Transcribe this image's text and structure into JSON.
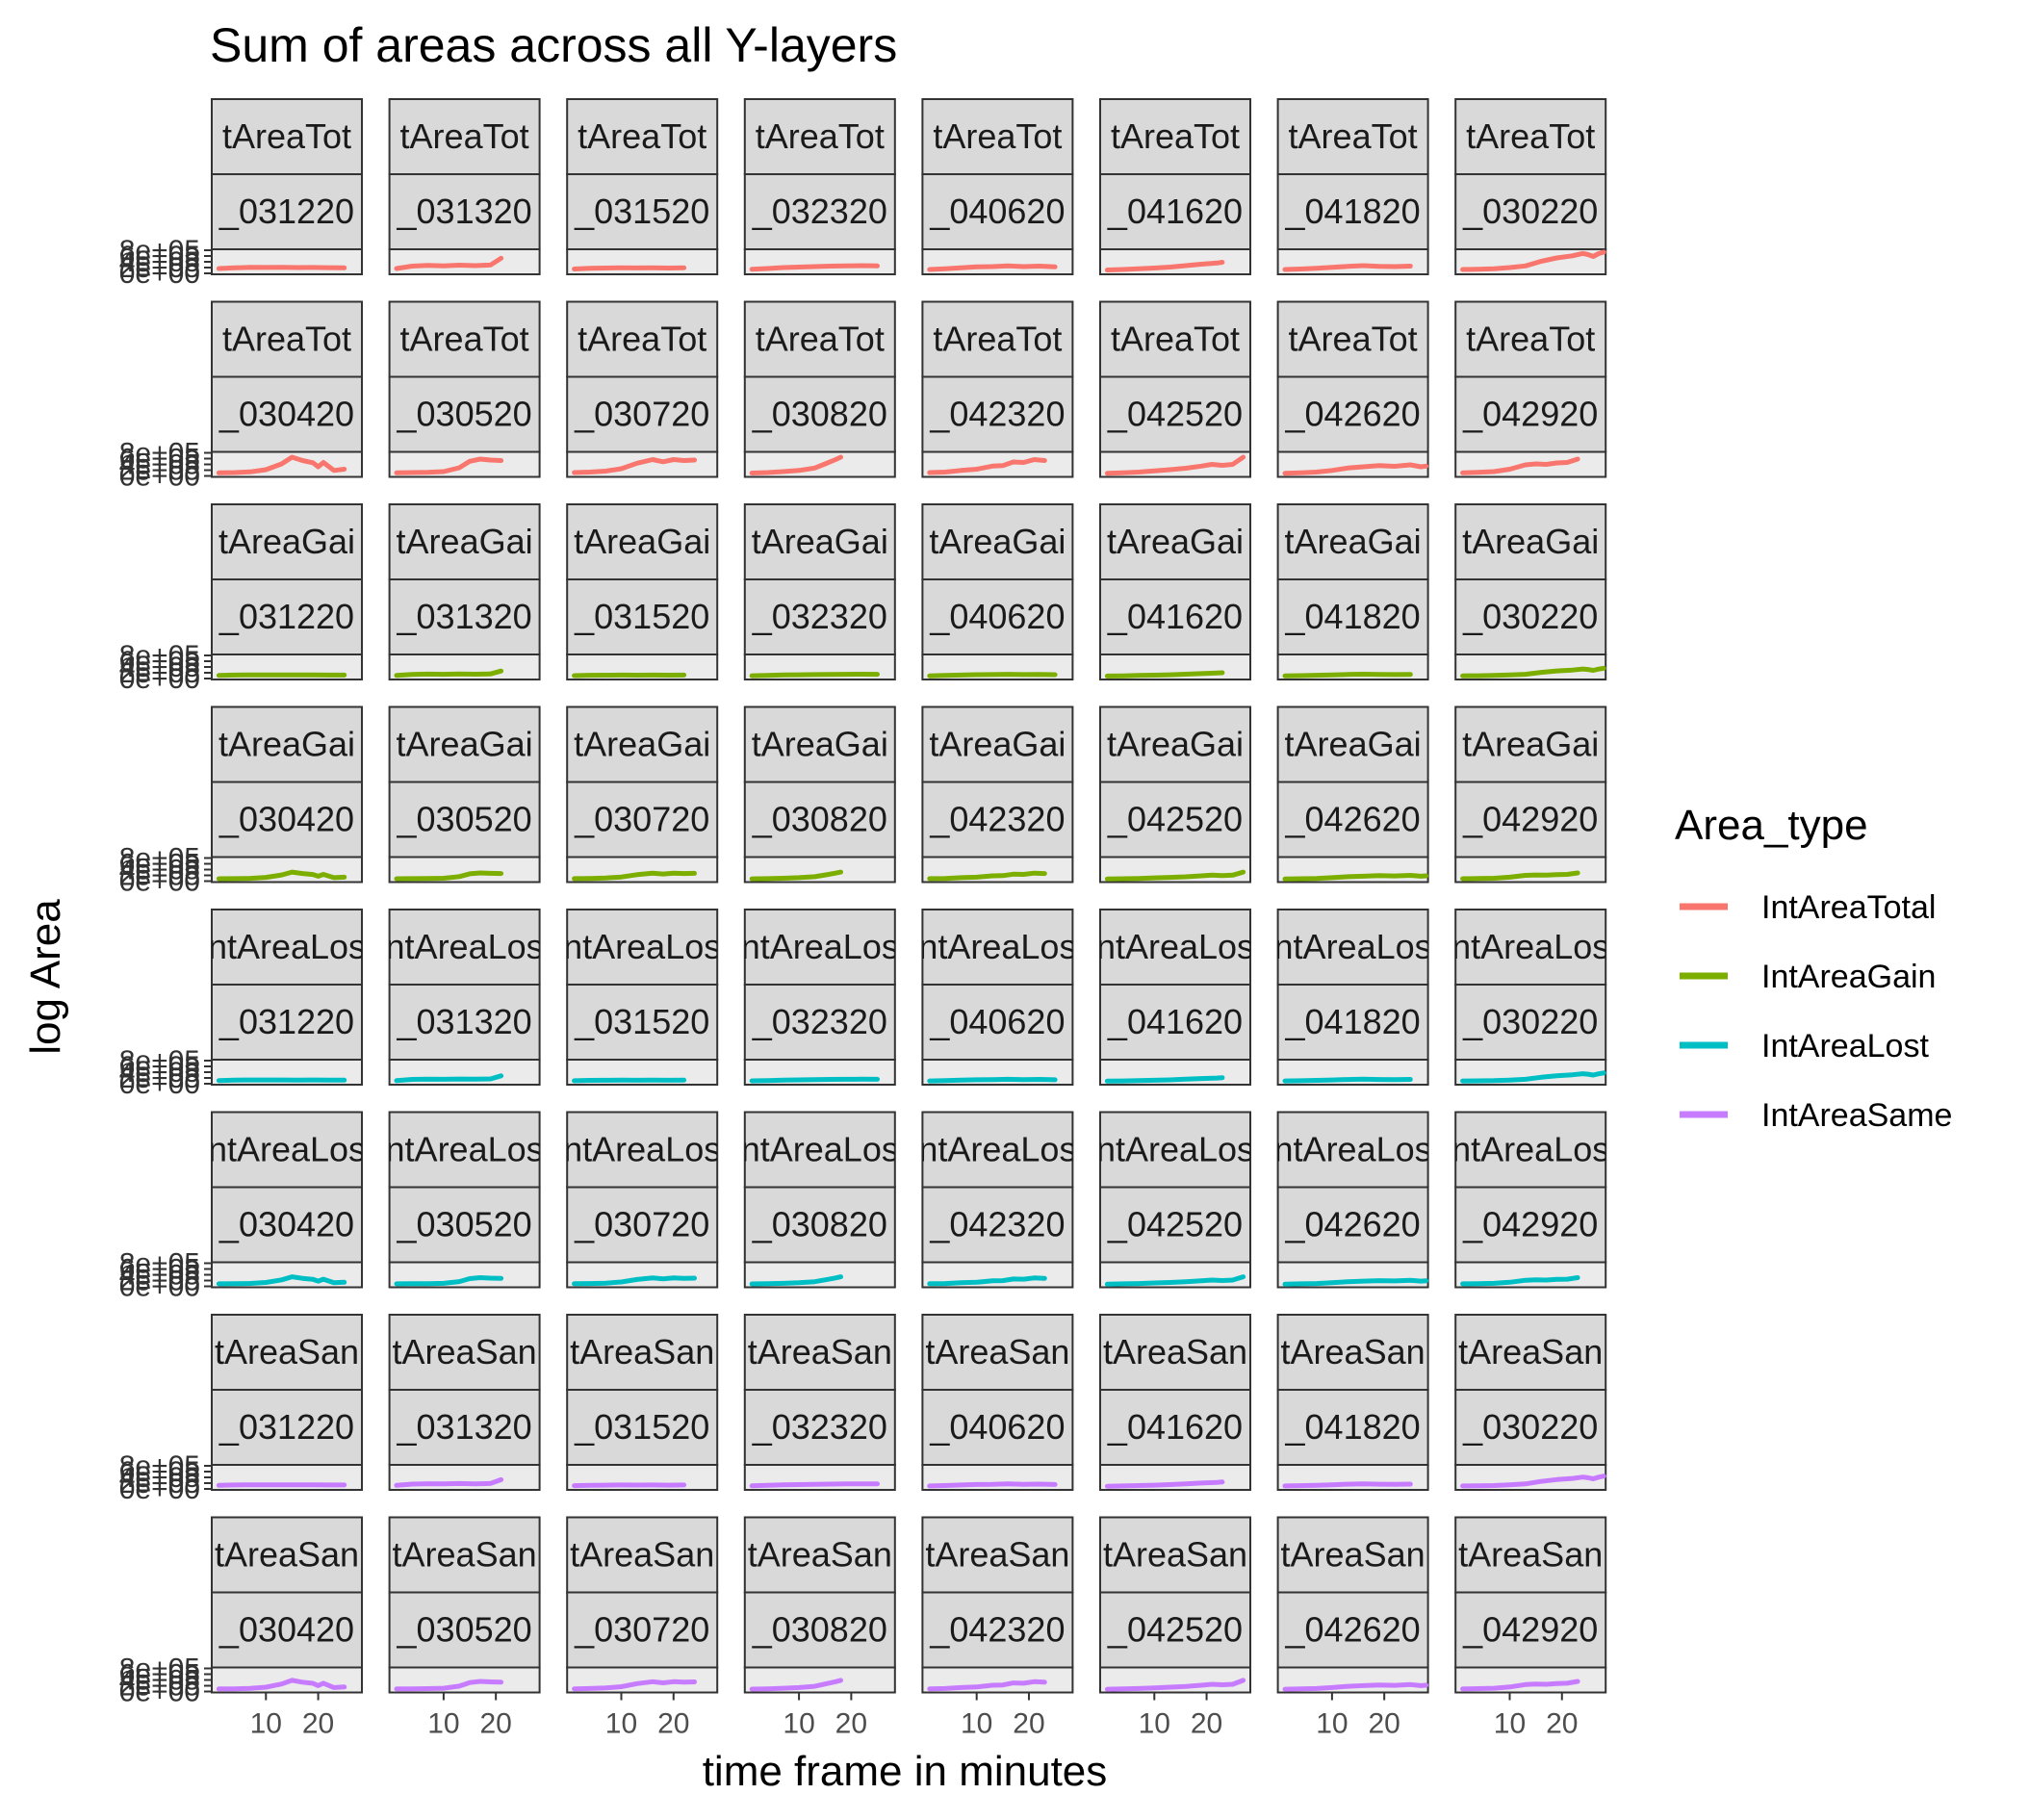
{
  "chart_data": {
    "type": "line",
    "title": "Sum of areas across all Y-layers",
    "xlabel": "time frame in minutes",
    "ylabel": "log Area",
    "x_ticks": [
      10,
      20
    ],
    "y_tick_labels": [
      "0e+00",
      "2e+05",
      "4e+05",
      "6e+05",
      "8e+05"
    ],
    "ylim": [
      0,
      800000
    ],
    "grid": false,
    "legend": {
      "title": "Area_type",
      "position": "right",
      "entries": [
        {
          "name": "IntAreaTotal",
          "color": "#F8766D"
        },
        {
          "name": "IntAreaGain",
          "color": "#7CAE00"
        },
        {
          "name": "IntAreaLost",
          "color": "#00BFC4"
        },
        {
          "name": "IntAreaSame",
          "color": "#C77CFF"
        }
      ]
    },
    "panel_rows": [
      {
        "area_type": "IntAreaTotal",
        "strip_label": "tAreaTot",
        "samples": [
          "_031220",
          "_031320",
          "_031520",
          "_032320",
          "_040620",
          "_041620",
          "_041820",
          "_030220"
        ]
      },
      {
        "area_type": "IntAreaTotal",
        "strip_label": "tAreaTot",
        "samples": [
          "_030420",
          "_030520",
          "_030720",
          "_030820",
          "_042320",
          "_042520",
          "_042620",
          "_042920"
        ]
      },
      {
        "area_type": "IntAreaGain",
        "strip_label": "tAreaGai",
        "samples": [
          "_031220",
          "_031320",
          "_031520",
          "_032320",
          "_040620",
          "_041620",
          "_041820",
          "_030220"
        ]
      },
      {
        "area_type": "IntAreaGain",
        "strip_label": "tAreaGai",
        "samples": [
          "_030420",
          "_030520",
          "_030720",
          "_030820",
          "_042320",
          "_042520",
          "_042620",
          "_042920"
        ]
      },
      {
        "area_type": "IntAreaLost",
        "strip_label": "ntAreaLos",
        "samples": [
          "_031220",
          "_031320",
          "_031520",
          "_032320",
          "_040620",
          "_041620",
          "_041820",
          "_030220"
        ]
      },
      {
        "area_type": "IntAreaLost",
        "strip_label": "ntAreaLos",
        "samples": [
          "_030420",
          "_030520",
          "_030720",
          "_030820",
          "_042320",
          "_042520",
          "_042620",
          "_042920"
        ]
      },
      {
        "area_type": "IntAreaSame",
        "strip_label": "tAreaSan",
        "samples": [
          "_031220",
          "_031320",
          "_031520",
          "_032320",
          "_040620",
          "_041620",
          "_041820",
          "_030220"
        ]
      },
      {
        "area_type": "IntAreaSame",
        "strip_label": "tAreaSan",
        "samples": [
          "_030420",
          "_030520",
          "_030720",
          "_030820",
          "_042320",
          "_042520",
          "_042620",
          "_042920"
        ]
      }
    ],
    "x_range": [
      0,
      28
    ],
    "sample_profiles": {
      "_031220": {
        "x": [
          1,
          4,
          7,
          10,
          13,
          16,
          19,
          22,
          25
        ],
        "y": [
          120000,
          150000,
          170000,
          165000,
          170000,
          160000,
          165000,
          155000,
          150000
        ]
      },
      "_031320": {
        "x": [
          1,
          4,
          7,
          10,
          13,
          16,
          19,
          21
        ],
        "y": [
          120000,
          220000,
          250000,
          230000,
          260000,
          240000,
          270000,
          550000
        ]
      },
      "_031520": {
        "x": [
          1,
          4,
          7,
          10,
          13,
          16,
          19,
          22
        ],
        "y": [
          100000,
          130000,
          140000,
          150000,
          145000,
          150000,
          140000,
          150000
        ]
      },
      "_032320": {
        "x": [
          1,
          4,
          7,
          10,
          13,
          16,
          19,
          22,
          25
        ],
        "y": [
          90000,
          120000,
          160000,
          180000,
          200000,
          220000,
          230000,
          240000,
          230000
        ]
      },
      "_040620": {
        "x": [
          1,
          4,
          7,
          10,
          13,
          16,
          19,
          22,
          25
        ],
        "y": [
          80000,
          110000,
          150000,
          190000,
          200000,
          230000,
          200000,
          220000,
          190000
        ]
      },
      "_041620": {
        "x": [
          1,
          4,
          7,
          10,
          13,
          16,
          19,
          22,
          23
        ],
        "y": [
          60000,
          80000,
          110000,
          140000,
          180000,
          240000,
          300000,
          350000,
          380000
        ]
      },
      "_041820": {
        "x": [
          1,
          4,
          7,
          10,
          13,
          16,
          19,
          22,
          25
        ],
        "y": [
          80000,
          100000,
          130000,
          170000,
          210000,
          240000,
          210000,
          200000,
          220000
        ]
      },
      "_030220": {
        "x": [
          1,
          4,
          7,
          10,
          13,
          16,
          19,
          22,
          24,
          25,
          26,
          27,
          28
        ],
        "y": [
          80000,
          90000,
          110000,
          160000,
          230000,
          420000,
          560000,
          650000,
          750000,
          700000,
          620000,
          740000,
          820000
        ]
      },
      "_030420": {
        "x": [
          1,
          4,
          7,
          10,
          13,
          15,
          17,
          19,
          20,
          21,
          23,
          25
        ],
        "y": [
          50000,
          60000,
          90000,
          180000,
          420000,
          700000,
          560000,
          470000,
          300000,
          480000,
          150000,
          200000
        ]
      },
      "_030520": {
        "x": [
          1,
          4,
          7,
          10,
          13,
          15,
          17,
          19,
          21
        ],
        "y": [
          50000,
          60000,
          70000,
          100000,
          260000,
          530000,
          620000,
          580000,
          560000
        ]
      },
      "_030720": {
        "x": [
          1,
          4,
          7,
          10,
          13,
          16,
          18,
          20,
          22,
          24
        ],
        "y": [
          60000,
          80000,
          120000,
          220000,
          450000,
          600000,
          510000,
          600000,
          560000,
          580000
        ]
      },
      "_030820": {
        "x": [
          1,
          4,
          7,
          10,
          13,
          15,
          17,
          18
        ],
        "y": [
          40000,
          60000,
          100000,
          150000,
          250000,
          420000,
          600000,
          700000
        ]
      },
      "_042320": {
        "x": [
          1,
          4,
          7,
          10,
          13,
          15,
          17,
          19,
          21,
          23
        ],
        "y": [
          60000,
          80000,
          150000,
          200000,
          330000,
          350000,
          500000,
          480000,
          600000,
          560000
        ]
      },
      "_042520": {
        "x": [
          1,
          4,
          7,
          10,
          13,
          16,
          19,
          21,
          23,
          25,
          27
        ],
        "y": [
          30000,
          50000,
          80000,
          130000,
          180000,
          240000,
          330000,
          400000,
          360000,
          400000,
          700000
        ]
      },
      "_042620": {
        "x": [
          1,
          4,
          7,
          10,
          13,
          16,
          19,
          22,
          25,
          27,
          28
        ],
        "y": [
          30000,
          50000,
          80000,
          150000,
          250000,
          300000,
          350000,
          320000,
          380000,
          300000,
          330000
        ]
      },
      "_042920": {
        "x": [
          1,
          4,
          7,
          10,
          13,
          15,
          17,
          19,
          21,
          23
        ],
        "y": [
          50000,
          70000,
          100000,
          200000,
          380000,
          420000,
          400000,
          460000,
          480000,
          620000
        ]
      }
    },
    "series_scale": {
      "IntAreaTotal": 1.0,
      "IntAreaGain": 0.42,
      "IntAreaLost": 0.45,
      "IntAreaSame": 0.55
    }
  }
}
